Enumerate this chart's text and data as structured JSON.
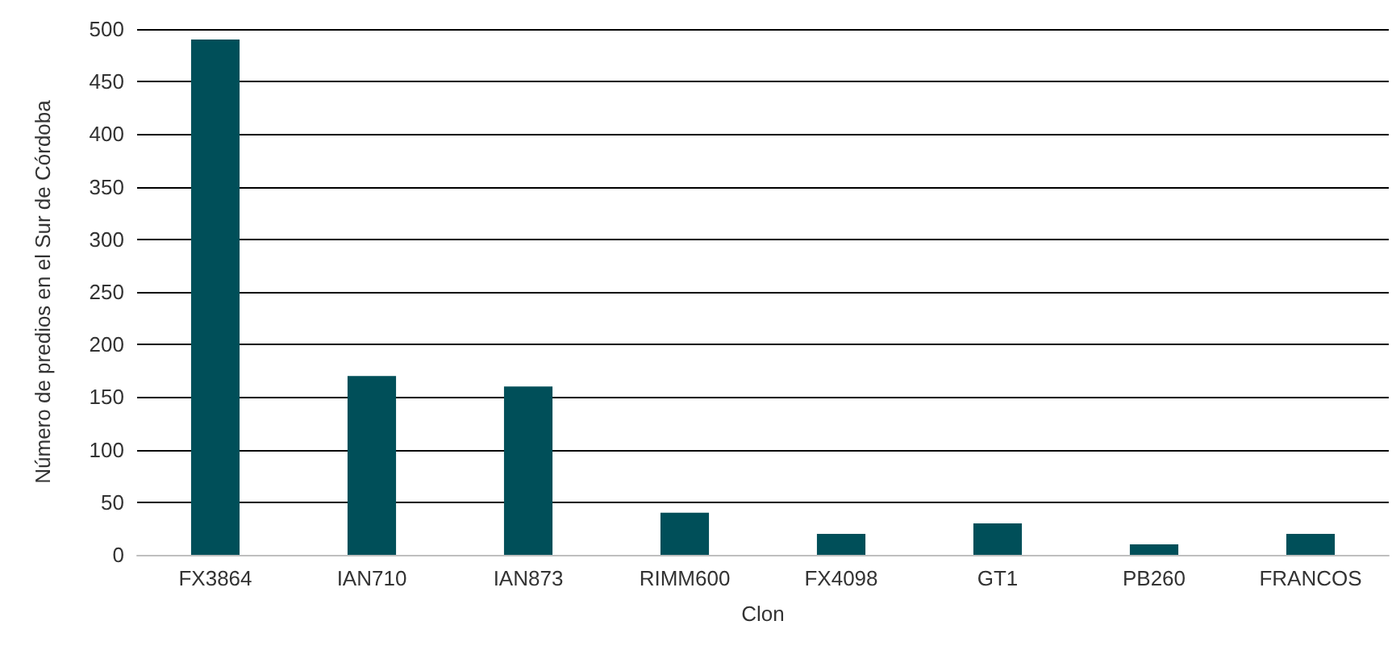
{
  "chart_data": {
    "type": "bar",
    "xlabel": "Clon",
    "ylabel": "Número de predios en el Sur de Córdoba",
    "categories": [
      "FX3864",
      "IAN710",
      "IAN873",
      "RIMM600",
      "FX4098",
      "GT1",
      "PB260",
      "FRANCOS"
    ],
    "values": [
      490,
      170,
      160,
      40,
      20,
      30,
      10,
      20
    ],
    "color": "#004f59",
    "ylim": [
      0,
      500
    ],
    "yticks": [
      0,
      50,
      100,
      150,
      200,
      250,
      300,
      350,
      400,
      450,
      500
    ],
    "grid": "y"
  }
}
